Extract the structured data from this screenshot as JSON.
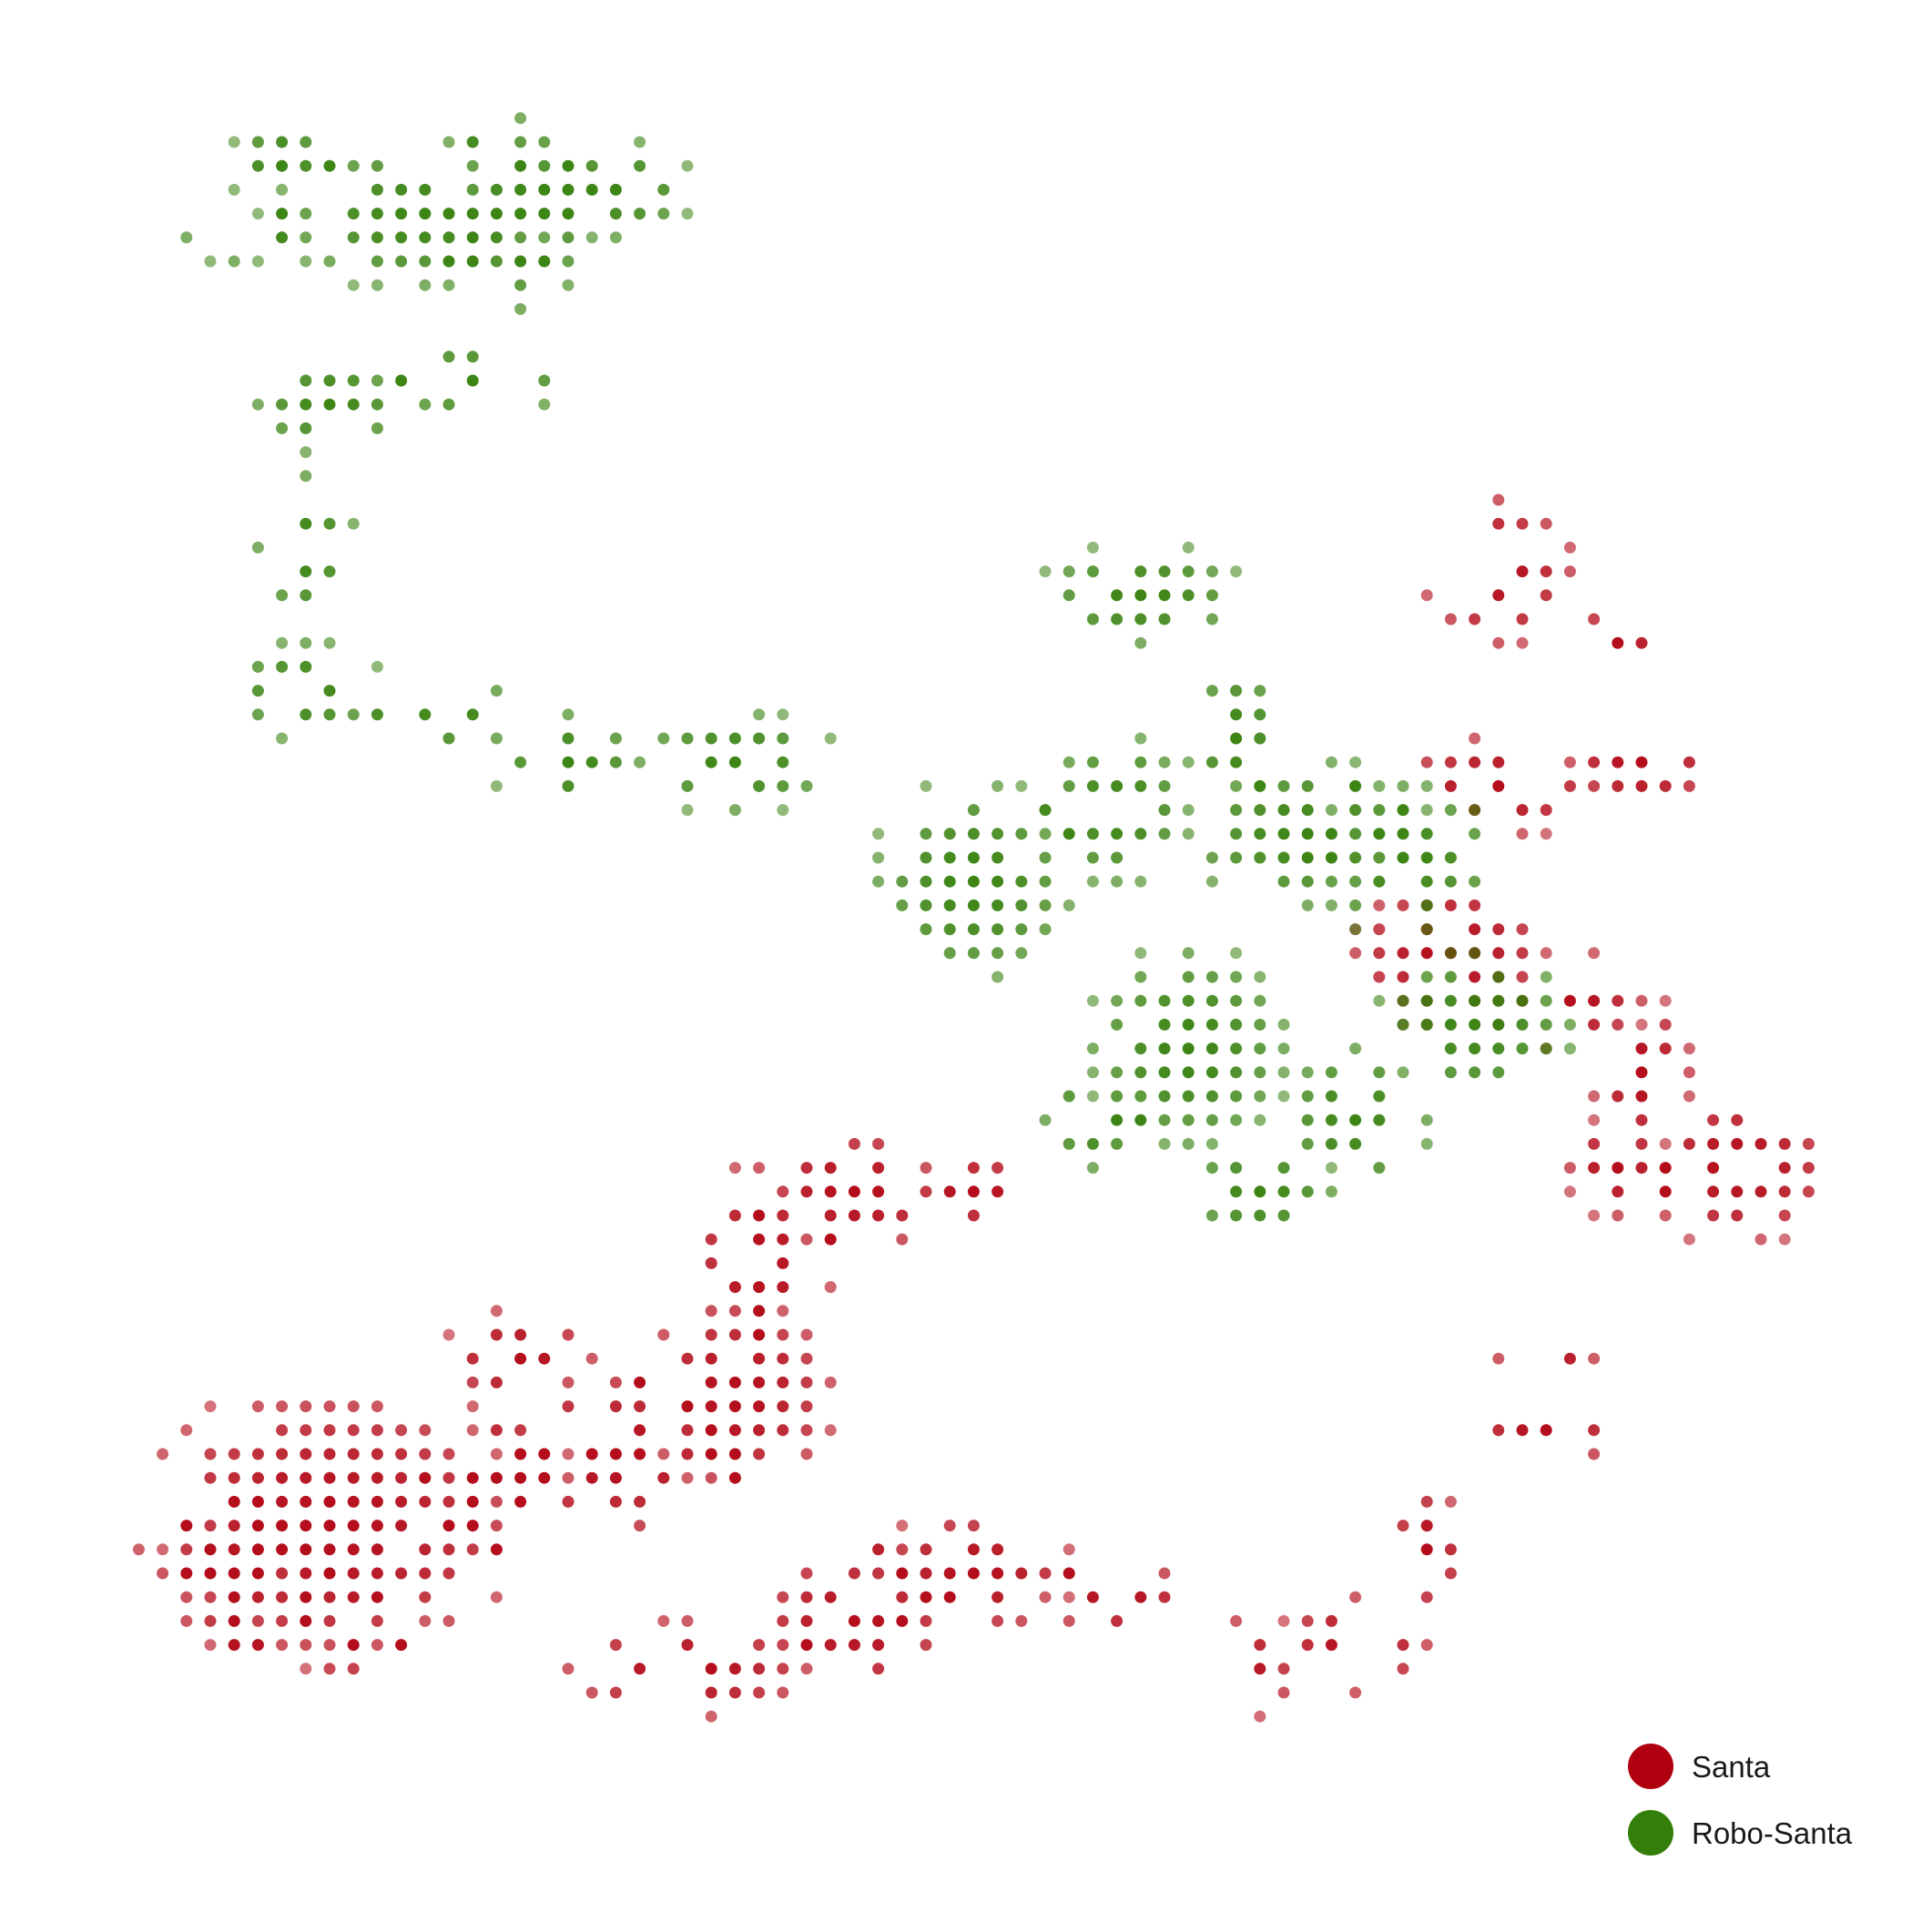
{
  "chart_data": {
    "type": "scatter",
    "title": "",
    "xlabel": "",
    "ylabel": "",
    "grid": false,
    "axes_visible": false,
    "legend_position": "bottom-right",
    "xlim": [
      0,
      78
    ],
    "ylim": [
      0,
      74
    ],
    "series": [
      {
        "name": "Santa",
        "color": "#b0000f",
        "clusters": [
          {
            "cx": 10,
            "cy": 12,
            "rx": 8,
            "ry": 5.5,
            "density": 0.85
          },
          {
            "cx": 6,
            "cy": 10,
            "rx": 3,
            "ry": 3,
            "density": 0.7
          },
          {
            "cx": 11,
            "cy": 8,
            "rx": 3,
            "ry": 2.5,
            "density": 0.6
          },
          {
            "cx": 17,
            "cy": 14,
            "rx": 3,
            "ry": 3,
            "density": 0.55
          },
          {
            "cx": 22,
            "cy": 15,
            "rx": 5,
            "ry": 3.5,
            "density": 0.6
          },
          {
            "cx": 27,
            "cy": 17.5,
            "rx": 4,
            "ry": 4,
            "density": 0.75
          },
          {
            "cx": 18,
            "cy": 19,
            "rx": 3,
            "ry": 2,
            "density": 0.5
          },
          {
            "cx": 28,
            "cy": 23,
            "rx": 3,
            "ry": 4,
            "density": 0.5
          },
          {
            "cx": 32,
            "cy": 26,
            "rx": 4,
            "ry": 2.5,
            "density": 0.5
          },
          {
            "cx": 37,
            "cy": 26,
            "rx": 3,
            "ry": 1.5,
            "density": 0.45
          },
          {
            "cx": 25,
            "cy": 6,
            "rx": 5,
            "ry": 2,
            "density": 0.55
          },
          {
            "cx": 32,
            "cy": 8,
            "rx": 4,
            "ry": 3,
            "density": 0.7
          },
          {
            "cx": 37,
            "cy": 10,
            "rx": 4,
            "ry": 2.5,
            "density": 0.75
          },
          {
            "cx": 43,
            "cy": 9,
            "rx": 3,
            "ry": 1.5,
            "density": 0.45
          },
          {
            "cx": 48,
            "cy": 6,
            "rx": 2.5,
            "ry": 2,
            "density": 0.45
          },
          {
            "cx": 53,
            "cy": 7,
            "rx": 3,
            "ry": 2,
            "density": 0.45
          },
          {
            "cx": 56,
            "cy": 11,
            "rx": 1.5,
            "ry": 2.5,
            "density": 0.5
          },
          {
            "cx": 61,
            "cy": 16,
            "rx": 3,
            "ry": 1.5,
            "density": 0.5
          },
          {
            "cx": 61,
            "cy": 19,
            "rx": 2,
            "ry": 1,
            "density": 0.45
          },
          {
            "cx": 64,
            "cy": 27,
            "rx": 2,
            "ry": 2,
            "density": 0.55
          },
          {
            "cx": 69,
            "cy": 27,
            "rx": 4,
            "ry": 3,
            "density": 0.5
          },
          {
            "cx": 65,
            "cy": 31,
            "rx": 2,
            "ry": 3,
            "density": 0.55
          },
          {
            "cx": 57,
            "cy": 36,
            "rx": 4,
            "ry": 3,
            "density": 0.8
          },
          {
            "cx": 62,
            "cy": 34,
            "rx": 3,
            "ry": 2,
            "density": 0.5
          },
          {
            "cx": 59,
            "cy": 43,
            "rx": 4,
            "ry": 2,
            "density": 0.55
          },
          {
            "cx": 65,
            "cy": 44,
            "rx": 3,
            "ry": 2,
            "density": 0.45
          },
          {
            "cx": 59,
            "cy": 52,
            "rx": 3,
            "ry": 3,
            "density": 0.5
          },
          {
            "cx": 64,
            "cy": 49,
            "rx": 2,
            "ry": 1.5,
            "density": 0.4
          }
        ]
      },
      {
        "name": "Robo-Santa",
        "color": "#337f0a",
        "clusters": [
          {
            "cx": 14,
            "cy": 67,
            "rx": 6,
            "ry": 3,
            "density": 0.8
          },
          {
            "cx": 18,
            "cy": 67,
            "rx": 3,
            "ry": 4,
            "density": 0.75
          },
          {
            "cx": 8,
            "cy": 69,
            "rx": 2,
            "ry": 2,
            "density": 0.7
          },
          {
            "cx": 22,
            "cy": 68,
            "rx": 3,
            "ry": 2,
            "density": 0.6
          },
          {
            "cx": 6,
            "cy": 66,
            "rx": 2,
            "ry": 1,
            "density": 0.5
          },
          {
            "cx": 10,
            "cy": 59,
            "rx": 3,
            "ry": 2,
            "density": 0.5
          },
          {
            "cx": 16,
            "cy": 60,
            "rx": 4,
            "ry": 1.5,
            "density": 0.45
          },
          {
            "cx": 9,
            "cy": 53,
            "rx": 2,
            "ry": 3,
            "density": 0.5
          },
          {
            "cx": 9,
            "cy": 47,
            "rx": 3,
            "ry": 2,
            "density": 0.55
          },
          {
            "cx": 15,
            "cy": 46,
            "rx": 3,
            "ry": 1.5,
            "density": 0.4
          },
          {
            "cx": 20,
            "cy": 44,
            "rx": 3,
            "ry": 2,
            "density": 0.6
          },
          {
            "cx": 27,
            "cy": 44,
            "rx": 4,
            "ry": 2,
            "density": 0.65
          },
          {
            "cx": 37,
            "cy": 39,
            "rx": 4,
            "ry": 4,
            "density": 0.85
          },
          {
            "cx": 43,
            "cy": 42,
            "rx": 3,
            "ry": 3,
            "density": 0.6
          },
          {
            "cx": 44,
            "cy": 51,
            "rx": 4,
            "ry": 2,
            "density": 0.6
          },
          {
            "cx": 48,
            "cy": 45,
            "rx": 2,
            "ry": 3,
            "density": 0.65
          },
          {
            "cx": 51,
            "cy": 41,
            "rx": 5,
            "ry": 3,
            "density": 0.75
          },
          {
            "cx": 55,
            "cy": 40,
            "rx": 4,
            "ry": 3,
            "density": 0.7
          },
          {
            "cx": 46,
            "cy": 32,
            "rx": 4,
            "ry": 4,
            "density": 0.9
          },
          {
            "cx": 58,
            "cy": 33,
            "rx": 4,
            "ry": 3,
            "density": 0.85
          },
          {
            "cx": 53,
            "cy": 29,
            "rx": 3,
            "ry": 3,
            "density": 0.75
          },
          {
            "cx": 49,
            "cy": 26,
            "rx": 3,
            "ry": 2,
            "density": 0.65
          },
          {
            "cx": 42,
            "cy": 29,
            "rx": 2,
            "ry": 2,
            "density": 0.5
          }
        ]
      }
    ]
  },
  "legend": [
    {
      "label": "Santa",
      "color": "#b0000f"
    },
    {
      "label": "Robo-Santa",
      "color": "#337f0a"
    }
  ]
}
